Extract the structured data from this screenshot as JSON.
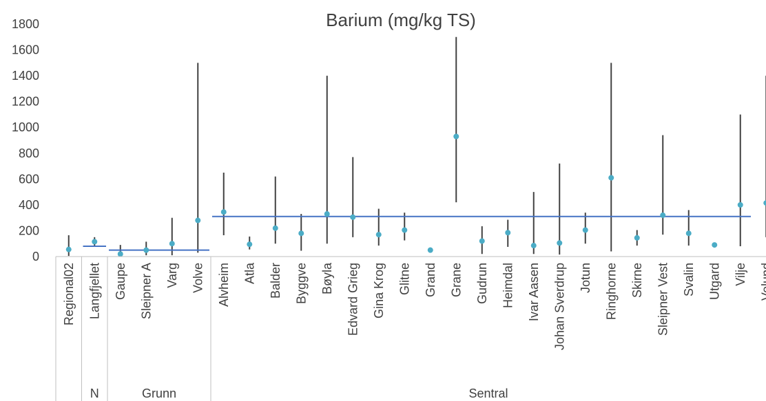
{
  "chart_data": {
    "type": "scatter",
    "title": "Barium (mg/kg TS)",
    "xlabel": "",
    "ylabel": "",
    "ylim": [
      0,
      1800
    ],
    "yticks": [
      0,
      200,
      400,
      600,
      800,
      1000,
      1200,
      1400,
      1600,
      1800
    ],
    "grid": false,
    "legend": "none",
    "categories": [
      "Regional02",
      "Langfjellet",
      "Gaupe",
      "Sleipner A",
      "Varg",
      "Volve",
      "Alvheim",
      "Atla",
      "Balder",
      "Byggve",
      "Bøyla",
      "Edvard Grieg",
      "Gina Krog",
      "Glitne",
      "Grand",
      "Grane",
      "Gudrun",
      "Heimdal",
      "Ivar Aasen",
      "Johan Sverdrup",
      "Jotun",
      "Ringhorne",
      "Skirne",
      "Sleipner Vest",
      "Svalin",
      "Utgard",
      "Vilje",
      "Volund"
    ],
    "series": [
      {
        "values": [
          55,
          115,
          20,
          50,
          100,
          280,
          345,
          95,
          220,
          180,
          330,
          305,
          170,
          205,
          50,
          930,
          120,
          185,
          85,
          105,
          205,
          610,
          145,
          320,
          180,
          90,
          400,
          415
        ]
      }
    ],
    "ranges": [
      [
        5,
        165
      ],
      [
        75,
        150
      ],
      [
        5,
        90
      ],
      [
        10,
        115
      ],
      [
        10,
        300
      ],
      [
        30,
        1500
      ],
      [
        165,
        650
      ],
      [
        55,
        155
      ],
      [
        100,
        620
      ],
      [
        45,
        330
      ],
      [
        100,
        1400
      ],
      [
        150,
        770
      ],
      [
        85,
        370
      ],
      [
        125,
        340
      ],
      [
        30,
        70
      ],
      [
        420,
        1700
      ],
      [
        20,
        235
      ],
      [
        75,
        285
      ],
      [
        20,
        500
      ],
      [
        15,
        720
      ],
      [
        100,
        340
      ],
      [
        40,
        1500
      ],
      [
        85,
        205
      ],
      [
        170,
        940
      ],
      [
        85,
        360
      ],
      [
        70,
        105
      ],
      [
        80,
        1100
      ],
      [
        150,
        1400
      ]
    ],
    "groups": [
      {
        "label": "",
        "count": 1,
        "mean": null
      },
      {
        "label": "N",
        "count": 1,
        "mean": 80
      },
      {
        "label": "Grunn",
        "count": 4,
        "mean": 50
      },
      {
        "label": "Sentral",
        "count": 22,
        "mean": 310
      }
    ],
    "colors": {
      "marker": "#4BACC6",
      "mean_line": "#4472C4",
      "range_line": "#404040",
      "axis": "#BFBFBF",
      "text": "#404040"
    }
  }
}
